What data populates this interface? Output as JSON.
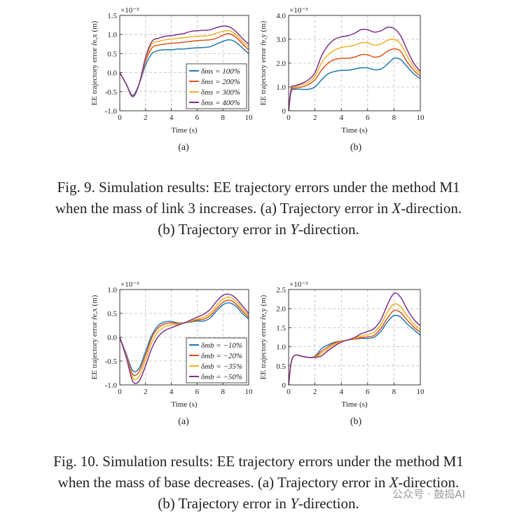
{
  "figures": [
    {
      "caption": {
        "line1": "Fig. 9.    Simulation results: EE trajectory errors under the method M1",
        "line2_pre": "when the mass of link 3 increases. (a) Trajectory error in ",
        "line2_it": "X",
        "line2_post": "-direction.",
        "line3_pre": "(b) Trajectory error in ",
        "line3_it": "Y",
        "line3_post": "-direction."
      }
    },
    {
      "caption": {
        "line1": "Fig. 10.    Simulation results: EE trajectory errors under the method M1",
        "line2_pre": "when the mass of base decreases. (a) Trajectory error in ",
        "line2_it": "X",
        "line2_post": "-direction.",
        "line3_pre": "(b) Trajectory error in ",
        "line3_it": "Y",
        "line3_post": "-direction."
      }
    }
  ],
  "watermark": "公众号 · 鼓捣AI",
  "colors": {
    "s1": "#1f77b4",
    "s2": "#d95319",
    "s3": "#edb120",
    "s4": "#7e2f8e"
  },
  "chart_data": [
    {
      "type": "line",
      "id": "fig9a",
      "panel_label": "(a)",
      "ylabel": "EE trajectory error r̃e,x (m)",
      "xlabel": "Time (s)",
      "exponent": "×10⁻³",
      "xlim": [
        0,
        10
      ],
      "ylim": [
        -1.0,
        1.5
      ],
      "xticks": [
        "0",
        "2",
        "4",
        "6",
        "8",
        "10"
      ],
      "yticks": [
        "-1.0",
        "-0.5",
        "0.0",
        "0.5",
        "1.0",
        "1.5"
      ],
      "legend_position": "lower-right",
      "x": [
        0,
        0.5,
        1,
        1.5,
        2,
        2.5,
        3,
        3.5,
        4,
        4.5,
        5,
        5.5,
        6,
        6.5,
        7,
        7.5,
        8,
        8.5,
        9,
        9.5,
        10
      ],
      "series": [
        {
          "name": "δms = 100%",
          "values": [
            0,
            -0.3,
            -0.6,
            -0.3,
            0.2,
            0.5,
            0.58,
            0.6,
            0.6,
            0.62,
            0.62,
            0.64,
            0.65,
            0.66,
            0.68,
            0.75,
            0.82,
            0.86,
            0.8,
            0.65,
            0.5
          ]
        },
        {
          "name": "δms = 200%",
          "values": [
            0,
            -0.3,
            -0.62,
            -0.3,
            0.3,
            0.65,
            0.72,
            0.75,
            0.77,
            0.78,
            0.8,
            0.82,
            0.84,
            0.85,
            0.86,
            0.9,
            0.98,
            1.02,
            0.93,
            0.76,
            0.6
          ]
        },
        {
          "name": "δms = 300%",
          "values": [
            0,
            -0.3,
            -0.63,
            -0.3,
            0.35,
            0.75,
            0.82,
            0.86,
            0.88,
            0.9,
            0.92,
            0.94,
            0.95,
            0.96,
            0.98,
            1.04,
            1.08,
            1.1,
            1.0,
            0.82,
            0.68
          ]
        },
        {
          "name": "δms = 400%",
          "values": [
            0,
            -0.3,
            -0.63,
            -0.3,
            0.4,
            0.82,
            0.9,
            0.95,
            0.97,
            1.0,
            1.03,
            1.08,
            1.1,
            1.11,
            1.12,
            1.18,
            1.22,
            1.2,
            1.08,
            0.9,
            0.74
          ]
        }
      ]
    },
    {
      "type": "line",
      "id": "fig9b",
      "panel_label": "(b)",
      "ylabel": "EE trajectory error r̃e,y (m)",
      "xlabel": "Time (s)",
      "exponent": "×10⁻³",
      "xlim": [
        0,
        10
      ],
      "ylim": [
        0,
        4.0
      ],
      "xticks": [
        "0",
        "2",
        "4",
        "6",
        "8",
        "10"
      ],
      "yticks": [
        "0",
        "1.0",
        "2.0",
        "3.0",
        "4.0"
      ],
      "x": [
        0,
        0.2,
        0.5,
        1,
        1.5,
        2,
        2.5,
        3,
        3.5,
        4,
        4.5,
        5,
        5.5,
        6,
        6.5,
        7,
        7.5,
        8,
        8.5,
        9,
        9.5,
        10
      ],
      "series": [
        {
          "name": "δms = 100%",
          "values": [
            0,
            0.8,
            0.9,
            0.9,
            0.9,
            1.0,
            1.3,
            1.55,
            1.65,
            1.7,
            1.7,
            1.75,
            1.8,
            1.8,
            1.72,
            1.75,
            1.95,
            2.2,
            2.15,
            1.85,
            1.55,
            1.35
          ]
        },
        {
          "name": "δms = 200%",
          "values": [
            0,
            0.85,
            0.95,
            1.0,
            1.1,
            1.3,
            1.7,
            2.0,
            2.15,
            2.2,
            2.2,
            2.25,
            2.35,
            2.35,
            2.25,
            2.3,
            2.5,
            2.6,
            2.5,
            2.05,
            1.7,
            1.45
          ]
        },
        {
          "name": "δms = 300%",
          "values": [
            0,
            0.9,
            1.0,
            1.1,
            1.2,
            1.45,
            2.0,
            2.35,
            2.55,
            2.65,
            2.7,
            2.75,
            2.85,
            2.85,
            2.75,
            2.8,
            2.95,
            3.0,
            2.8,
            2.3,
            1.85,
            1.55
          ]
        },
        {
          "name": "δms = 400%",
          "values": [
            0,
            0.95,
            1.05,
            1.15,
            1.3,
            1.6,
            2.3,
            2.75,
            3.0,
            3.1,
            3.15,
            3.25,
            3.4,
            3.4,
            3.3,
            3.35,
            3.5,
            3.45,
            3.15,
            2.55,
            2.0,
            1.65
          ]
        }
      ]
    },
    {
      "type": "line",
      "id": "fig10a",
      "panel_label": "(a)",
      "ylabel": "EE trajectory error r̃e,x (m)",
      "xlabel": "Time (s)",
      "exponent": "×10⁻³",
      "xlim": [
        0,
        10
      ],
      "ylim": [
        -1.0,
        1.0
      ],
      "xticks": [
        "0",
        "2",
        "4",
        "6",
        "8",
        "10"
      ],
      "yticks": [
        "-1.0",
        "-0.5",
        "0.0",
        "0.5",
        "1.0"
      ],
      "legend_position": "lower-right",
      "x": [
        0,
        0.5,
        1,
        1.5,
        2,
        2.5,
        3,
        3.5,
        4,
        4.5,
        5,
        5.5,
        6,
        6.5,
        7,
        7.5,
        8,
        8.5,
        9,
        9.5,
        10
      ],
      "series": [
        {
          "name": "δmb = −10%",
          "values": [
            0,
            -0.35,
            -0.7,
            -0.65,
            -0.3,
            0.05,
            0.25,
            0.32,
            0.33,
            0.3,
            0.3,
            0.32,
            0.34,
            0.34,
            0.4,
            0.55,
            0.68,
            0.72,
            0.65,
            0.5,
            0.38
          ]
        },
        {
          "name": "δmb = −20%",
          "values": [
            0,
            -0.38,
            -0.78,
            -0.72,
            -0.38,
            0.0,
            0.2,
            0.28,
            0.3,
            0.29,
            0.3,
            0.33,
            0.36,
            0.38,
            0.45,
            0.6,
            0.73,
            0.78,
            0.7,
            0.55,
            0.42
          ]
        },
        {
          "name": "δmb = −35%",
          "values": [
            0,
            -0.4,
            -0.85,
            -0.82,
            -0.48,
            -0.1,
            0.12,
            0.22,
            0.26,
            0.27,
            0.3,
            0.34,
            0.38,
            0.42,
            0.5,
            0.66,
            0.8,
            0.84,
            0.76,
            0.6,
            0.46
          ]
        },
        {
          "name": "δmb = −50%",
          "values": [
            0,
            -0.42,
            -0.92,
            -0.92,
            -0.6,
            -0.22,
            0.02,
            0.14,
            0.2,
            0.25,
            0.3,
            0.36,
            0.42,
            0.48,
            0.58,
            0.75,
            0.88,
            0.9,
            0.82,
            0.66,
            0.5
          ]
        }
      ]
    },
    {
      "type": "line",
      "id": "fig10b",
      "panel_label": "(b)",
      "ylabel": "EE trajectory error r̃e,y (m)",
      "xlabel": "Time (s)",
      "exponent": "×10⁻³",
      "xlim": [
        0,
        10
      ],
      "ylim": [
        0,
        2.5
      ],
      "xticks": [
        "0",
        "2",
        "4",
        "6",
        "8",
        "10"
      ],
      "yticks": [
        "0",
        "0.5",
        "1.0",
        "1.5",
        "2.0",
        "2.5"
      ],
      "x": [
        0,
        0.2,
        0.5,
        1,
        1.5,
        2,
        2.5,
        3,
        3.5,
        4,
        4.5,
        5,
        5.5,
        6,
        6.5,
        7,
        7.5,
        8,
        8.5,
        9,
        9.5,
        10
      ],
      "series": [
        {
          "name": "δmb = −10%",
          "values": [
            0,
            0.6,
            0.78,
            0.75,
            0.72,
            0.75,
            0.95,
            1.05,
            1.12,
            1.15,
            1.18,
            1.2,
            1.22,
            1.22,
            1.25,
            1.4,
            1.65,
            1.82,
            1.78,
            1.6,
            1.45,
            1.3
          ]
        },
        {
          "name": "δmb = −20%",
          "values": [
            0,
            0.6,
            0.78,
            0.75,
            0.72,
            0.74,
            0.88,
            1.0,
            1.1,
            1.15,
            1.18,
            1.2,
            1.24,
            1.26,
            1.3,
            1.48,
            1.75,
            1.95,
            1.9,
            1.7,
            1.52,
            1.38
          ]
        },
        {
          "name": "δmb = −35%",
          "values": [
            0,
            0.6,
            0.78,
            0.75,
            0.72,
            0.73,
            0.82,
            0.95,
            1.06,
            1.14,
            1.18,
            1.22,
            1.28,
            1.32,
            1.38,
            1.58,
            1.9,
            2.12,
            2.05,
            1.82,
            1.6,
            1.45
          ]
        },
        {
          "name": "δmb = −50%",
          "values": [
            0,
            0.6,
            0.78,
            0.75,
            0.72,
            0.72,
            0.76,
            0.9,
            1.02,
            1.12,
            1.18,
            1.24,
            1.34,
            1.4,
            1.48,
            1.7,
            2.1,
            2.4,
            2.3,
            1.98,
            1.72,
            1.55
          ]
        }
      ]
    }
  ]
}
